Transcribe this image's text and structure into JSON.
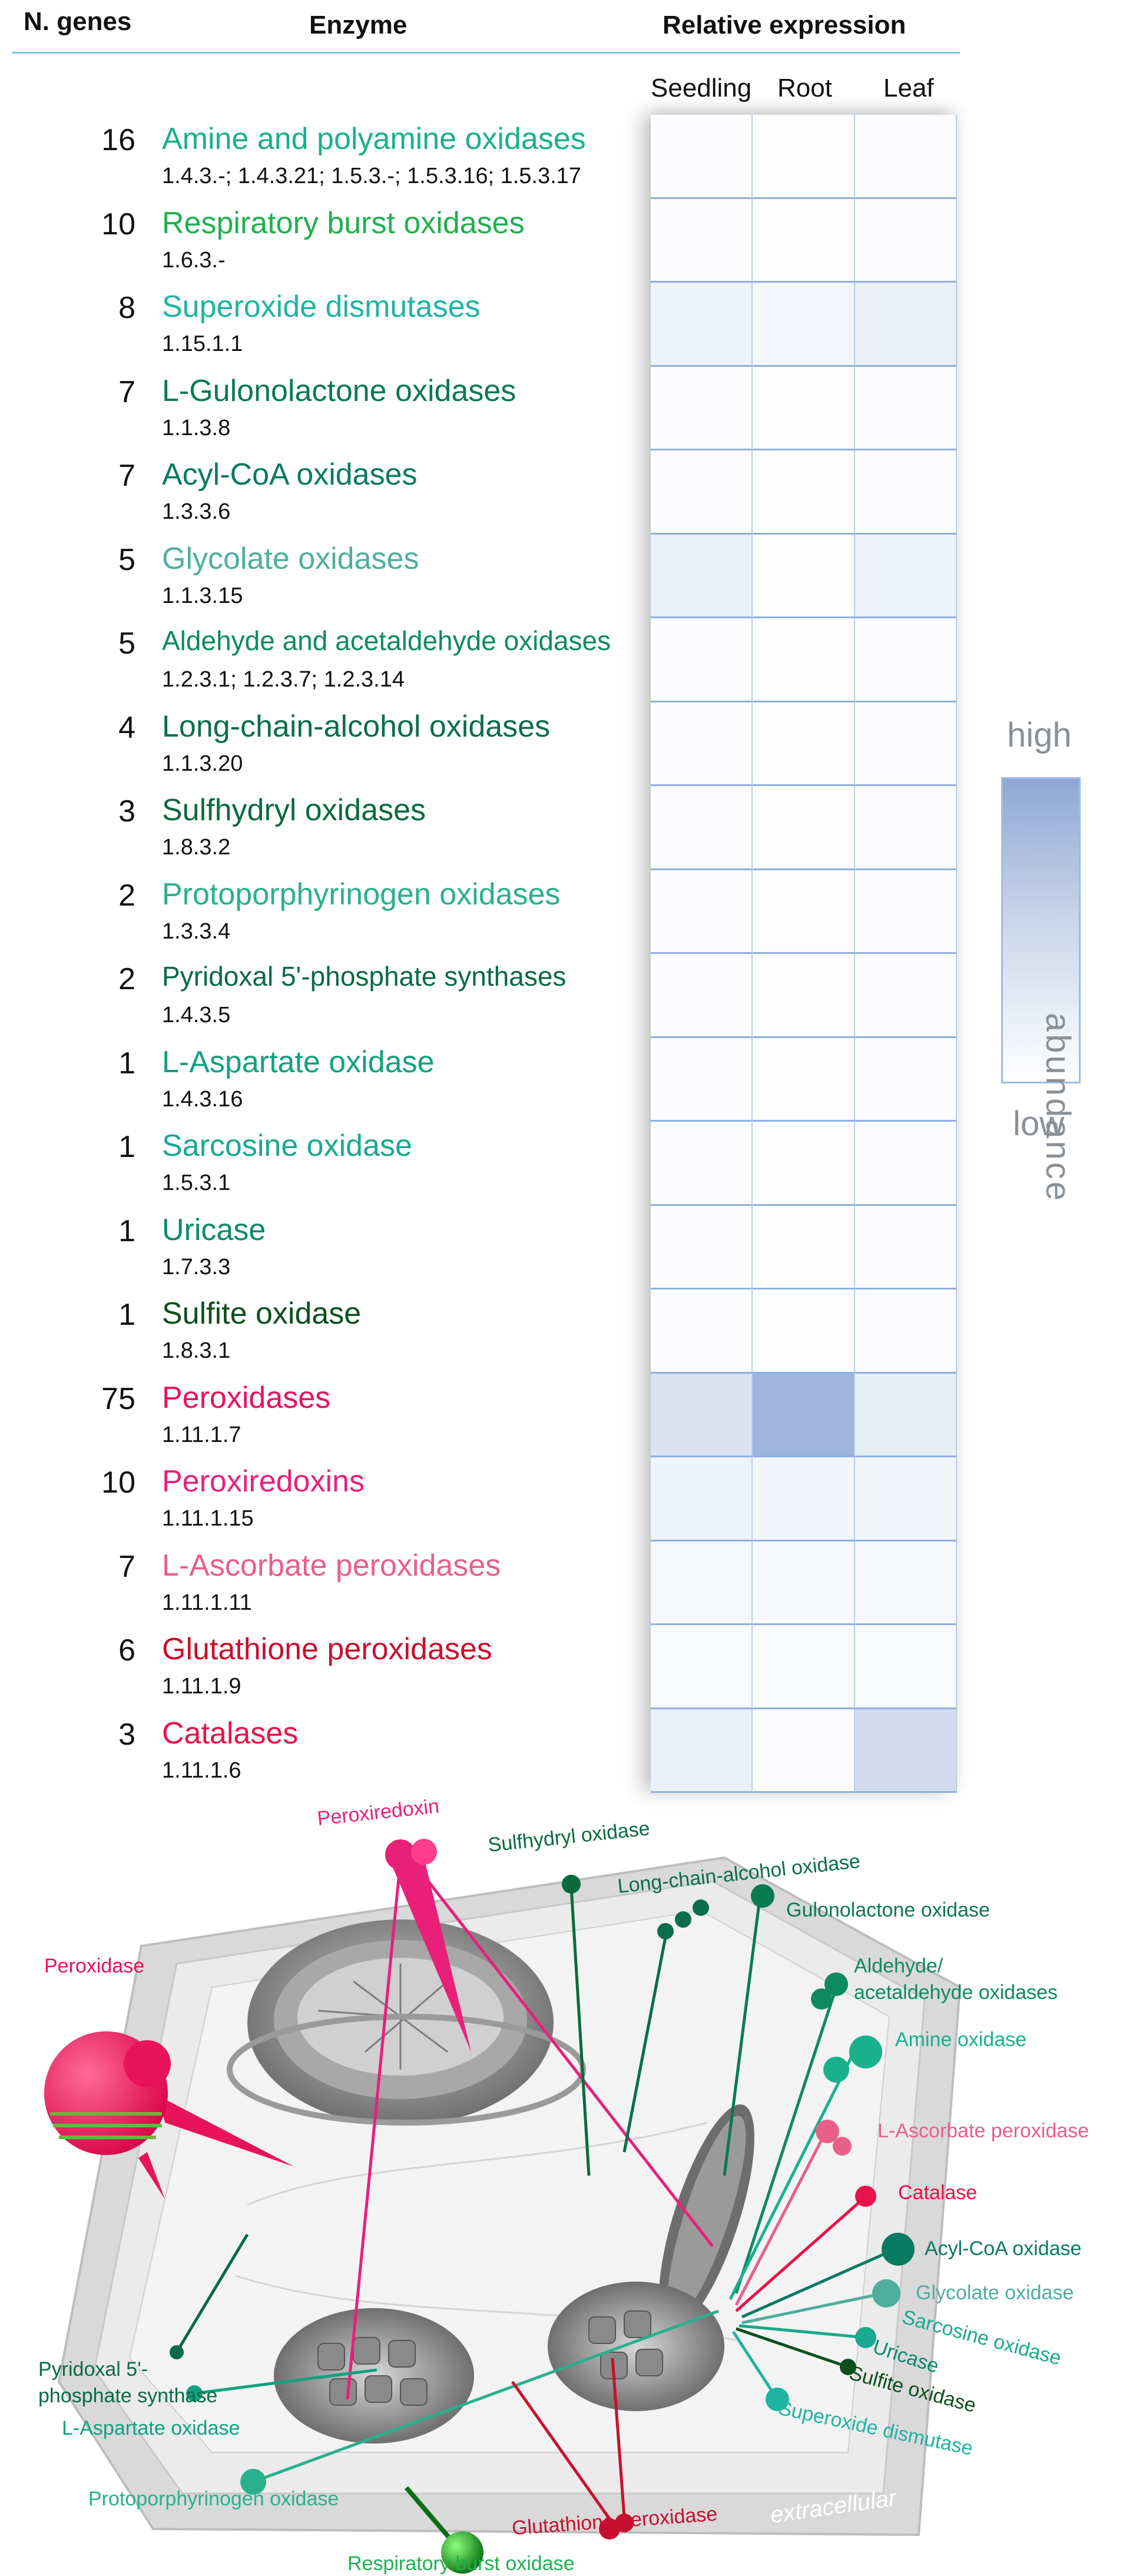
{
  "header": {
    "genes": "N. genes",
    "enzyme": "Enzyme",
    "expression": "Relative expression"
  },
  "columns": [
    "Seedling",
    "Root",
    "Leaf"
  ],
  "enzymes": [
    {
      "count": "16",
      "name": "Amine and polyamine oxidases",
      "ec": "1.4.3.-; 1.4.3.21; 1.5.3.-; 1.5.3.16; 1.5.3.17",
      "color": "#19b08c"
    },
    {
      "count": "10",
      "name": "Respiratory burst oxidases",
      "ec": "1.6.3.-",
      "color": "#1fb050"
    },
    {
      "count": "8",
      "name": "Superoxide dismutases",
      "ec": "1.15.1.1",
      "color": "#1fb3a3"
    },
    {
      "count": "7",
      "name": "L-Gulonolactone oxidases",
      "ec": "1.1.3.8",
      "color": "#0a7a50"
    },
    {
      "count": "7",
      "name": "Acyl-CoA oxidases",
      "ec": "1.3.3.6",
      "color": "#0a7a62"
    },
    {
      "count": "5",
      "name": "Glycolate oxidases",
      "ec": "1.1.3.15",
      "color": "#4fae9e"
    },
    {
      "count": "5",
      "name": "Aldehyde and acetaldehyde oxidases",
      "ec": "1.2.3.1; 1.2.3.7; 1.2.3.14",
      "color": "#0e8a60"
    },
    {
      "count": "4",
      "name": "Long-chain-alcohol oxidases",
      "ec": "1.1.3.20",
      "color": "#0a6e4a"
    },
    {
      "count": "3",
      "name": "Sulfhydryl oxidases",
      "ec": "1.8.3.2",
      "color": "#0a6a3e"
    },
    {
      "count": "2",
      "name": "Protoporphyrinogen oxidases",
      "ec": "1.3.3.4",
      "color": "#29b08e"
    },
    {
      "count": "2",
      "name": "Pyridoxal 5'-phosphate synthases",
      "ec": "1.4.3.5",
      "color": "#0a6a45"
    },
    {
      "count": "1",
      "name": "L-Aspartate oxidase",
      "ec": "1.4.3.16",
      "color": "#13a080"
    },
    {
      "count": "1",
      "name": "Sarcosine oxidase",
      "ec": "1.5.3.1",
      "color": "#1aa890"
    },
    {
      "count": "1",
      "name": "Uricase",
      "ec": "1.7.3.3",
      "color": "#0a8a6e"
    },
    {
      "count": "1",
      "name": "Sulfite oxidase",
      "ec": "1.8.3.1",
      "color": "#0b4f1c"
    },
    {
      "count": "75",
      "name": "Peroxidases",
      "ec": "1.11.1.7",
      "color": "#e8135a"
    },
    {
      "count": "10",
      "name": "Peroxiredoxins",
      "ec": "1.11.1.15",
      "color": "#e8207a"
    },
    {
      "count": "7",
      "name": "L-Ascorbate peroxidases",
      "ec": "1.11.1.11",
      "color": "#e8608a"
    },
    {
      "count": "6",
      "name": "Glutathione peroxidases",
      "ec": "1.11.1.9",
      "color": "#c8102e"
    },
    {
      "count": "3",
      "name": "Catalases",
      "ec": "1.11.1.6",
      "color": "#e8134a"
    }
  ],
  "chart_data": {
    "type": "heatmap",
    "x": [
      "Seedling",
      "Root",
      "Leaf"
    ],
    "y": [
      "Amine and polyamine oxidases",
      "Respiratory burst oxidases",
      "Superoxide dismutases",
      "L-Gulonolactone oxidases",
      "Acyl-CoA oxidases",
      "Glycolate oxidases",
      "Aldehyde and acetaldehyde oxidases",
      "Long-chain-alcohol oxidases",
      "Sulfhydryl oxidases",
      "Protoporphyrinogen oxidases",
      "Pyridoxal 5'-phosphate synthases",
      "L-Aspartate oxidase",
      "Sarcosine oxidase",
      "Uricase",
      "Sulfite oxidase",
      "Peroxidases",
      "Peroxiredoxins",
      "L-Ascorbate peroxidases",
      "Glutathione peroxidases",
      "Catalases"
    ],
    "values": [
      [
        0.03,
        0.02,
        0.03
      ],
      [
        0.03,
        0.02,
        0.03
      ],
      [
        0.15,
        0.1,
        0.18
      ],
      [
        0.03,
        0.02,
        0.03
      ],
      [
        0.03,
        0.02,
        0.03
      ],
      [
        0.18,
        0.02,
        0.15
      ],
      [
        0.03,
        0.02,
        0.03
      ],
      [
        0.03,
        0.02,
        0.03
      ],
      [
        0.03,
        0.02,
        0.03
      ],
      [
        0.03,
        0.02,
        0.03
      ],
      [
        0.03,
        0.02,
        0.03
      ],
      [
        0.03,
        0.02,
        0.03
      ],
      [
        0.03,
        0.02,
        0.03
      ],
      [
        0.03,
        0.02,
        0.03
      ],
      [
        0.03,
        0.02,
        0.03
      ],
      [
        0.32,
        0.85,
        0.2
      ],
      [
        0.15,
        0.12,
        0.12
      ],
      [
        0.08,
        0.07,
        0.08
      ],
      [
        0.06,
        0.05,
        0.06
      ],
      [
        0.18,
        0.03,
        0.4
      ]
    ],
    "legend": {
      "high": "high",
      "low": "low",
      "label": "abundance"
    },
    "colors": {
      "high": "#8ea8d4",
      "low": "#ffffff"
    }
  },
  "cell_labels": [
    {
      "text": "Peroxiredoxin",
      "color": "#e8207a"
    },
    {
      "text": "Sulfhydryl oxidase",
      "color": "#0a6a3e"
    },
    {
      "text": "Long-chain-alcohol oxidase",
      "color": "#0a6e4a"
    },
    {
      "text": "Gulonolactone oxidase",
      "color": "#0a7a50"
    },
    {
      "text": "Peroxidase",
      "color": "#e8135a"
    },
    {
      "text": "Aldehyde/",
      "color": "#0e8a60"
    },
    {
      "text": "acetaldehyde oxidases",
      "color": "#0e8a60"
    },
    {
      "text": "Amine oxidase",
      "color": "#19b08c"
    },
    {
      "text": "L-Ascorbate peroxidase",
      "color": "#e8608a"
    },
    {
      "text": "Catalase",
      "color": "#e8134a"
    },
    {
      "text": "Acyl-CoA oxidase",
      "color": "#0a7a62"
    },
    {
      "text": "Glycolate oxidase",
      "color": "#4fae9e"
    },
    {
      "text": "Sarcosine oxidase",
      "color": "#1aa890"
    },
    {
      "text": "Uricase",
      "color": "#0a8a6e"
    },
    {
      "text": "Sulfite oxidase",
      "color": "#0b4f1c"
    },
    {
      "text": "Superoxide dismutase",
      "color": "#1fb3a3"
    },
    {
      "text": "Pyridoxal 5'-",
      "color": "#0a6a45"
    },
    {
      "text": "phosphate synthase",
      "color": "#0a6a45"
    },
    {
      "text": "L-Aspartate oxidase",
      "color": "#13a080"
    },
    {
      "text": "Protoporphyrinogen oxidase",
      "color": "#29b08e"
    },
    {
      "text": "Glutathione peroxidase",
      "color": "#c8102e"
    },
    {
      "text": "extracellular",
      "color": "#ffffff"
    },
    {
      "text": "Respiratory burst oxidase",
      "color": "#1fb050"
    }
  ]
}
